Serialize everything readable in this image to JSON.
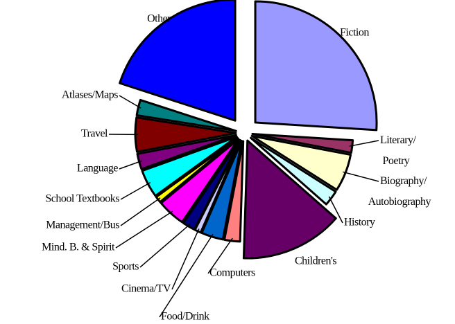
{
  "chart_data": {
    "type": "pie",
    "categories": [
      "Fiction",
      "Literary/ Poetry",
      "Biography/ Autobiography",
      "History",
      "Children's",
      "Computers",
      "Food/Drink",
      "Cinema/TV",
      "Sports",
      "Mind. B. & Spirit",
      "Management/Bus",
      "School Textbooks",
      "Language",
      "Travel",
      "Atlases/Maps",
      "Other"
    ],
    "values": [
      26,
      2,
      6,
      2.5,
      14,
      2.5,
      3.5,
      1,
      2,
      4.5,
      1,
      4.5,
      2.5,
      5.5,
      2.5,
      20
    ],
    "colors": [
      "#9999ff",
      "#993366",
      "#ffffcc",
      "#ccffff",
      "#660066",
      "#ff8080",
      "#0066cc",
      "#ccccff",
      "#000080",
      "#ff00ff",
      "#ffff00",
      "#00ffff",
      "#800080",
      "#800000",
      "#008080",
      "#0000ff"
    ]
  }
}
